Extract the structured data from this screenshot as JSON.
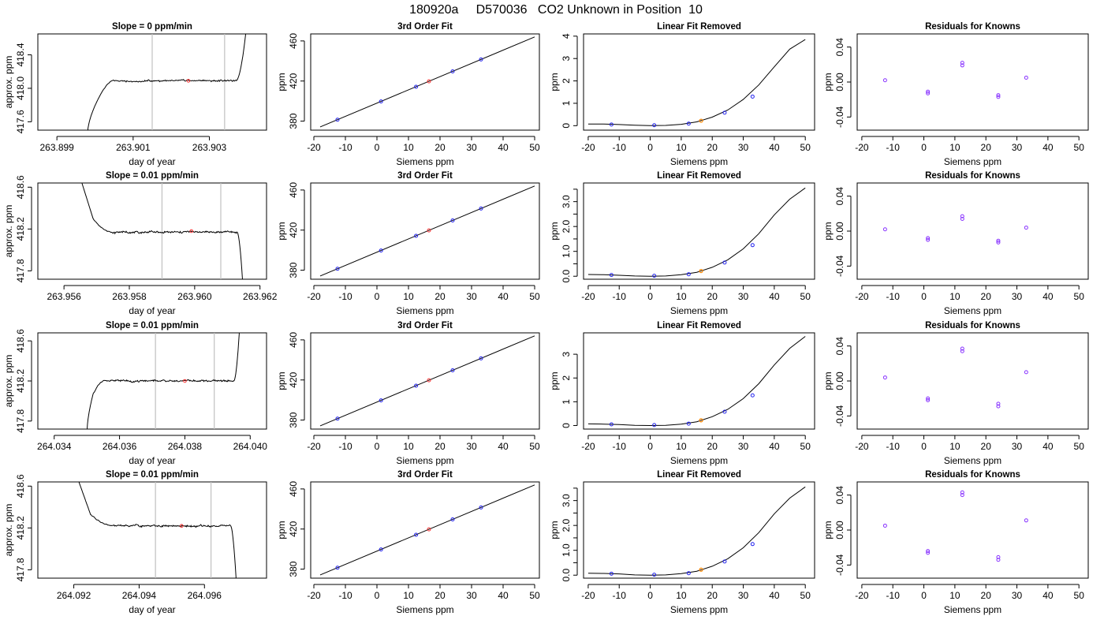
{
  "page_title": "180920a     D570036   CO2 Unknown in Position  10",
  "colors": {
    "unknown_point": "#ff3333",
    "orange_point": "#ff8800",
    "known_point": "#2222ee",
    "residual_point": "#8833ff",
    "bracket_line": "#c0c0c0",
    "line": "#000000"
  },
  "chart_data": [
    {
      "type": "line",
      "panel": "time",
      "title": "Slope =  0  ppm/min",
      "xlabel": "day of year",
      "ylabel": "approx. ppm",
      "xlim": [
        263.8985,
        263.9045
      ],
      "ylim": [
        417.5,
        418.65
      ],
      "xticks": [
        263.899,
        263.901,
        263.903
      ],
      "xtick_labels": [
        "263.899",
        "263.901",
        "263.903"
      ],
      "yticks": [
        417.6,
        418.0,
        418.4
      ],
      "ytick_labels": [
        "417.6",
        "418.0",
        "418.4"
      ],
      "xrange": [
        263.8998,
        263.9042
      ],
      "kind": "up",
      "level": 418.09,
      "rise": [
        263.9002,
        263.9005
      ],
      "drop": 263.9037,
      "spike": 263.904,
      "vlines": [
        263.9015,
        263.9034
      ],
      "unknown_point": {
        "x": 263.90245,
        "y": 418.09
      }
    },
    {
      "type": "scatter",
      "panel": "fit",
      "title": "3rd Order Fit",
      "xlabel": "Siemens ppm",
      "ylabel": "ppm",
      "xlim": [
        -21,
        51.5
      ],
      "ylim": [
        371,
        467
      ],
      "xticks": [
        -20,
        -10,
        0,
        10,
        20,
        30,
        40,
        50
      ],
      "yticks": [
        380,
        420,
        460
      ],
      "line": [
        [
          -18,
          374.2
        ],
        [
          50,
          464
        ]
      ],
      "known_points": [
        {
          "x": -12.5,
          "y": 381.4
        },
        {
          "x": 1.3,
          "y": 399.6
        },
        {
          "x": 12.4,
          "y": 414.3
        },
        {
          "x": 24.0,
          "y": 429.6
        },
        {
          "x": 33.0,
          "y": 441.5
        }
      ],
      "unknown_point": {
        "x": 16.5,
        "y": 419.7
      }
    },
    {
      "type": "scatter",
      "panel": "lin",
      "title": "Linear Fit Removed",
      "xlabel": "Siemens ppm",
      "ylabel": "ppm",
      "xlim": [
        -21.5,
        53
      ],
      "ylim": [
        -0.2,
        4.1
      ],
      "yticks": [
        0,
        1,
        2,
        3,
        4
      ],
      "ytick_labels": [
        "0",
        "1",
        "2",
        "3",
        "4"
      ],
      "xticks": [
        -20,
        -10,
        0,
        10,
        20,
        30,
        40,
        50
      ],
      "curve": [
        [
          -20,
          0.07
        ],
        [
          -15,
          0.07
        ],
        [
          -10,
          0.05
        ],
        [
          -5,
          0.02
        ],
        [
          0,
          0.0
        ],
        [
          5,
          0.01
        ],
        [
          10,
          0.06
        ],
        [
          15,
          0.17
        ],
        [
          20,
          0.38
        ],
        [
          25,
          0.7
        ],
        [
          30,
          1.17
        ],
        [
          35,
          1.82
        ],
        [
          40,
          2.63
        ],
        [
          45,
          3.42
        ],
        [
          50,
          3.85
        ]
      ],
      "known_points": [
        {
          "x": -12.5,
          "y": 0.05
        },
        {
          "x": 1.3,
          "y": 0.02
        },
        {
          "x": 12.4,
          "y": 0.09
        },
        {
          "x": 24.0,
          "y": 0.58
        },
        {
          "x": 33.0,
          "y": 1.3
        }
      ],
      "orange_point": {
        "x": 16.4,
        "y": 0.22
      }
    },
    {
      "type": "scatter",
      "panel": "res",
      "title": "Residuals for Knowns",
      "xlabel": "Siemens ppm",
      "ylabel": "ppm",
      "xlim": [
        -21.5,
        53
      ],
      "ylim": [
        -0.055,
        0.055
      ],
      "xticks": [
        -20,
        -10,
        0,
        10,
        20,
        30,
        40,
        50
      ],
      "yticks": [
        -0.04,
        0.0,
        0.04
      ],
      "ytick_labels": [
        "-0.04",
        "0.00",
        "0.04"
      ],
      "points": [
        {
          "x": -12.5,
          "y": 0.002
        },
        {
          "x": 1.3,
          "y": -0.011
        },
        {
          "x": 1.3,
          "y": -0.013
        },
        {
          "x": 12.4,
          "y": 0.019
        },
        {
          "x": 12.4,
          "y": 0.022
        },
        {
          "x": 24.0,
          "y": -0.015
        },
        {
          "x": 24.0,
          "y": -0.017
        },
        {
          "x": 33.0,
          "y": 0.005
        }
      ]
    },
    {
      "type": "line",
      "panel": "time",
      "title": "Slope =  0.01  ppm/min",
      "xlabel": "day of year",
      "ylabel": "approx. ppm",
      "xlim": [
        263.9552,
        263.9622
      ],
      "ylim": [
        417.72,
        418.64
      ],
      "xticks": [
        263.956,
        263.958,
        263.96,
        263.962
      ],
      "xtick_labels": [
        "263.956",
        "263.958",
        "263.960",
        "263.962"
      ],
      "yticks": [
        417.8,
        418.2,
        418.6
      ],
      "ytick_labels": [
        "417.8",
        "418.2",
        "418.6"
      ],
      "xrange": [
        263.9565,
        263.9615
      ],
      "kind": "down",
      "level": 418.17,
      "rise": [
        263.9569,
        263.9575
      ],
      "drop": 263.9613,
      "spike": 263.9615,
      "vlines": [
        263.959,
        263.9608
      ],
      "unknown_point": {
        "x": 263.9599,
        "y": 418.18
      }
    },
    {
      "type": "scatter",
      "panel": "fit",
      "title": "3rd Order Fit",
      "xlabel": "Siemens ppm",
      "ylabel": "ppm",
      "xlim": [
        -21,
        51.5
      ],
      "ylim": [
        371,
        467
      ],
      "xticks": [
        -20,
        -10,
        0,
        10,
        20,
        30,
        40,
        50
      ],
      "yticks": [
        380,
        420,
        460
      ],
      "line": [
        [
          -18,
          374.2
        ],
        [
          50,
          464
        ]
      ],
      "known_points": [
        {
          "x": -12.5,
          "y": 381.4
        },
        {
          "x": 1.3,
          "y": 399.6
        },
        {
          "x": 12.4,
          "y": 414.3
        },
        {
          "x": 24.0,
          "y": 429.6
        },
        {
          "x": 33.0,
          "y": 441.5
        }
      ],
      "unknown_point": {
        "x": 16.5,
        "y": 419.7
      }
    },
    {
      "type": "scatter",
      "panel": "lin",
      "title": "Linear Fit Removed",
      "xlabel": "Siemens ppm",
      "ylabel": "ppm",
      "xlim": [
        -21.5,
        53
      ],
      "ylim": [
        -0.12,
        3.75
      ],
      "yticks": [
        0,
        0.5,
        1.0,
        1.5,
        2.0,
        2.5,
        3.0,
        3.5
      ],
      "ytick_labels": [
        "0.0",
        "",
        "1.0",
        "",
        "2.0",
        "",
        "3.0",
        ""
      ],
      "xticks": [
        -20,
        -10,
        0,
        10,
        20,
        30,
        40,
        50
      ],
      "curve": [
        [
          -20,
          0.07
        ],
        [
          -15,
          0.06
        ],
        [
          -10,
          0.04
        ],
        [
          -5,
          0.01
        ],
        [
          0,
          0.0
        ],
        [
          5,
          0.01
        ],
        [
          10,
          0.06
        ],
        [
          15,
          0.16
        ],
        [
          20,
          0.36
        ],
        [
          25,
          0.66
        ],
        [
          30,
          1.1
        ],
        [
          35,
          1.71
        ],
        [
          40,
          2.47
        ],
        [
          45,
          3.1
        ],
        [
          50,
          3.55
        ]
      ],
      "known_points": [
        {
          "x": -12.5,
          "y": 0.05
        },
        {
          "x": 1.3,
          "y": 0.02
        },
        {
          "x": 12.4,
          "y": 0.08
        },
        {
          "x": 24.0,
          "y": 0.55
        },
        {
          "x": 33.0,
          "y": 1.25
        }
      ],
      "orange_point": {
        "x": 16.4,
        "y": 0.21
      }
    },
    {
      "type": "scatter",
      "panel": "res",
      "title": "Residuals for Knowns",
      "xlabel": "Siemens ppm",
      "ylabel": "ppm",
      "xlim": [
        -21.5,
        53
      ],
      "ylim": [
        -0.055,
        0.055
      ],
      "xticks": [
        -20,
        -10,
        0,
        10,
        20,
        30,
        40,
        50
      ],
      "yticks": [
        -0.04,
        0.0,
        0.04
      ],
      "ytick_labels": [
        "-0.04",
        "0.00",
        "0.04"
      ],
      "points": [
        {
          "x": -12.5,
          "y": 0.002
        },
        {
          "x": 1.3,
          "y": -0.008
        },
        {
          "x": 1.3,
          "y": -0.01
        },
        {
          "x": 12.4,
          "y": 0.014
        },
        {
          "x": 12.4,
          "y": 0.017
        },
        {
          "x": 24.0,
          "y": -0.011
        },
        {
          "x": 24.0,
          "y": -0.013
        },
        {
          "x": 33.0,
          "y": 0.004
        }
      ]
    },
    {
      "type": "line",
      "panel": "time",
      "title": "Slope =  0.01  ppm/min",
      "xlabel": "day of year",
      "ylabel": "approx. ppm",
      "xlim": [
        264.0335,
        264.0405
      ],
      "ylim": [
        417.72,
        418.68
      ],
      "xticks": [
        264.034,
        264.036,
        264.038,
        264.04
      ],
      "xtick_labels": [
        "264.034",
        "264.036",
        "264.038",
        "264.040"
      ],
      "yticks": [
        417.8,
        418.2,
        418.6
      ],
      "ytick_labels": [
        "417.8",
        "418.2",
        "418.6"
      ],
      "xrange": [
        264.035,
        264.0397
      ],
      "kind": "up",
      "level": 418.2,
      "rise": [
        264.0352,
        264.0356
      ],
      "drop": 264.0395,
      "spike": 264.0397,
      "vlines": [
        264.0371,
        264.0389
      ],
      "unknown_point": {
        "x": 264.038,
        "y": 418.2
      }
    },
    {
      "type": "scatter",
      "panel": "fit",
      "title": "3rd Order Fit",
      "xlabel": "Siemens ppm",
      "ylabel": "ppm",
      "xlim": [
        -21,
        51.5
      ],
      "ylim": [
        371,
        467
      ],
      "xticks": [
        -20,
        -10,
        0,
        10,
        20,
        30,
        40,
        50
      ],
      "yticks": [
        380,
        420,
        460
      ],
      "line": [
        [
          -18,
          374.2
        ],
        [
          50,
          464
        ]
      ],
      "known_points": [
        {
          "x": -12.5,
          "y": 381.4
        },
        {
          "x": 1.3,
          "y": 399.6
        },
        {
          "x": 12.4,
          "y": 414.3
        },
        {
          "x": 24.0,
          "y": 429.6
        },
        {
          "x": 33.0,
          "y": 441.5
        }
      ],
      "unknown_point": {
        "x": 16.5,
        "y": 419.7
      }
    },
    {
      "type": "scatter",
      "panel": "lin",
      "title": "Linear Fit Removed",
      "xlabel": "Siemens ppm",
      "ylabel": "ppm",
      "xlim": [
        -21.5,
        53
      ],
      "ylim": [
        -0.15,
        3.9
      ],
      "yticks": [
        0,
        1,
        2,
        3
      ],
      "ytick_labels": [
        "0",
        "1",
        "2",
        "3"
      ],
      "xticks": [
        -20,
        -10,
        0,
        10,
        20,
        30,
        40,
        50
      ],
      "curve": [
        [
          -20,
          0.07
        ],
        [
          -15,
          0.06
        ],
        [
          -10,
          0.04
        ],
        [
          -5,
          0.01
        ],
        [
          0,
          0.0
        ],
        [
          5,
          0.01
        ],
        [
          10,
          0.06
        ],
        [
          15,
          0.16
        ],
        [
          20,
          0.37
        ],
        [
          25,
          0.68
        ],
        [
          30,
          1.13
        ],
        [
          35,
          1.76
        ],
        [
          40,
          2.55
        ],
        [
          45,
          3.25
        ],
        [
          50,
          3.75
        ]
      ],
      "known_points": [
        {
          "x": -12.5,
          "y": 0.05
        },
        {
          "x": 1.3,
          "y": 0.02
        },
        {
          "x": 12.4,
          "y": 0.08
        },
        {
          "x": 24.0,
          "y": 0.58
        },
        {
          "x": 33.0,
          "y": 1.27
        }
      ],
      "orange_point": {
        "x": 16.4,
        "y": 0.22
      }
    },
    {
      "type": "scatter",
      "panel": "res",
      "title": "Residuals for Knowns",
      "xlabel": "Siemens ppm",
      "ylabel": "ppm",
      "xlim": [
        -21.5,
        53
      ],
      "ylim": [
        -0.055,
        0.055
      ],
      "xticks": [
        -20,
        -10,
        0,
        10,
        20,
        30,
        40,
        50
      ],
      "yticks": [
        -0.04,
        0.0,
        0.04
      ],
      "ytick_labels": [
        "-0.04",
        "0.00",
        "0.04"
      ],
      "points": [
        {
          "x": -12.5,
          "y": 0.004
        },
        {
          "x": 1.3,
          "y": -0.02
        },
        {
          "x": 1.3,
          "y": -0.022
        },
        {
          "x": 12.4,
          "y": 0.034
        },
        {
          "x": 12.4,
          "y": 0.037
        },
        {
          "x": 24.0,
          "y": -0.026
        },
        {
          "x": 24.0,
          "y": -0.029
        },
        {
          "x": 33.0,
          "y": 0.01
        }
      ]
    },
    {
      "type": "line",
      "panel": "time",
      "title": "Slope =  0.01  ppm/min",
      "xlabel": "day of year",
      "ylabel": "approx. ppm",
      "xlim": [
        264.0909,
        264.0979
      ],
      "ylim": [
        417.72,
        418.64
      ],
      "xticks": [
        264.092,
        264.094,
        264.096
      ],
      "xtick_labels": [
        "264.092",
        "264.094",
        "264.096"
      ],
      "yticks": [
        417.8,
        418.2,
        418.6
      ],
      "ytick_labels": [
        "417.8",
        "418.2",
        "418.6"
      ],
      "xrange": [
        264.0921,
        264.097
      ],
      "kind": "down",
      "level": 418.22,
      "rise": [
        264.0925,
        264.0932
      ],
      "drop": 264.0968,
      "spike": 264.097,
      "vlines": [
        264.0945,
        264.0962
      ],
      "unknown_point": {
        "x": 264.0953,
        "y": 418.22
      }
    },
    {
      "type": "scatter",
      "panel": "fit",
      "title": "3rd Order Fit",
      "xlabel": "Siemens ppm",
      "ylabel": "ppm",
      "xlim": [
        -21,
        51.5
      ],
      "ylim": [
        371,
        467
      ],
      "xticks": [
        -20,
        -10,
        0,
        10,
        20,
        30,
        40,
        50
      ],
      "yticks": [
        380,
        420,
        460
      ],
      "line": [
        [
          -18,
          374.2
        ],
        [
          50,
          464
        ]
      ],
      "known_points": [
        {
          "x": -12.5,
          "y": 381.4
        },
        {
          "x": 1.3,
          "y": 399.6
        },
        {
          "x": 12.4,
          "y": 414.3
        },
        {
          "x": 24.0,
          "y": 429.6
        },
        {
          "x": 33.0,
          "y": 441.5
        }
      ],
      "unknown_point": {
        "x": 16.5,
        "y": 419.7
      }
    },
    {
      "type": "scatter",
      "panel": "lin",
      "title": "Linear Fit Removed",
      "xlabel": "Siemens ppm",
      "ylabel": "ppm",
      "xlim": [
        -21.5,
        53
      ],
      "ylim": [
        -0.12,
        3.75
      ],
      "yticks": [
        0,
        0.5,
        1.0,
        1.5,
        2.0,
        2.5,
        3.0,
        3.5
      ],
      "ytick_labels": [
        "0.0",
        "",
        "1.0",
        "",
        "2.0",
        "",
        "3.0",
        ""
      ],
      "xticks": [
        -20,
        -10,
        0,
        10,
        20,
        30,
        40,
        50
      ],
      "curve": [
        [
          -20,
          0.08
        ],
        [
          -15,
          0.07
        ],
        [
          -10,
          0.05
        ],
        [
          -5,
          0.01
        ],
        [
          0,
          0.0
        ],
        [
          5,
          0.01
        ],
        [
          10,
          0.06
        ],
        [
          15,
          0.16
        ],
        [
          20,
          0.36
        ],
        [
          25,
          0.66
        ],
        [
          30,
          1.1
        ],
        [
          35,
          1.71
        ],
        [
          40,
          2.47
        ],
        [
          45,
          3.1
        ],
        [
          50,
          3.55
        ]
      ],
      "known_points": [
        {
          "x": -12.5,
          "y": 0.06
        },
        {
          "x": 1.3,
          "y": 0.02
        },
        {
          "x": 12.4,
          "y": 0.08
        },
        {
          "x": 24.0,
          "y": 0.55
        },
        {
          "x": 33.0,
          "y": 1.25
        }
      ],
      "orange_point": {
        "x": 16.4,
        "y": 0.22
      }
    },
    {
      "type": "scatter",
      "panel": "res",
      "title": "Residuals for Knowns",
      "xlabel": "Siemens ppm",
      "ylabel": "ppm",
      "xlim": [
        -21.5,
        53
      ],
      "ylim": [
        -0.055,
        0.055
      ],
      "xticks": [
        -20,
        -10,
        0,
        10,
        20,
        30,
        40,
        50
      ],
      "yticks": [
        -0.04,
        0.0,
        0.04
      ],
      "ytick_labels": [
        "-0.04",
        "0.00",
        "0.04"
      ],
      "points": [
        {
          "x": -12.5,
          "y": 0.005
        },
        {
          "x": 1.3,
          "y": -0.024
        },
        {
          "x": 1.3,
          "y": -0.026
        },
        {
          "x": 12.4,
          "y": 0.04
        },
        {
          "x": 12.4,
          "y": 0.043
        },
        {
          "x": 24.0,
          "y": -0.031
        },
        {
          "x": 24.0,
          "y": -0.034
        },
        {
          "x": 33.0,
          "y": 0.011
        }
      ]
    }
  ]
}
